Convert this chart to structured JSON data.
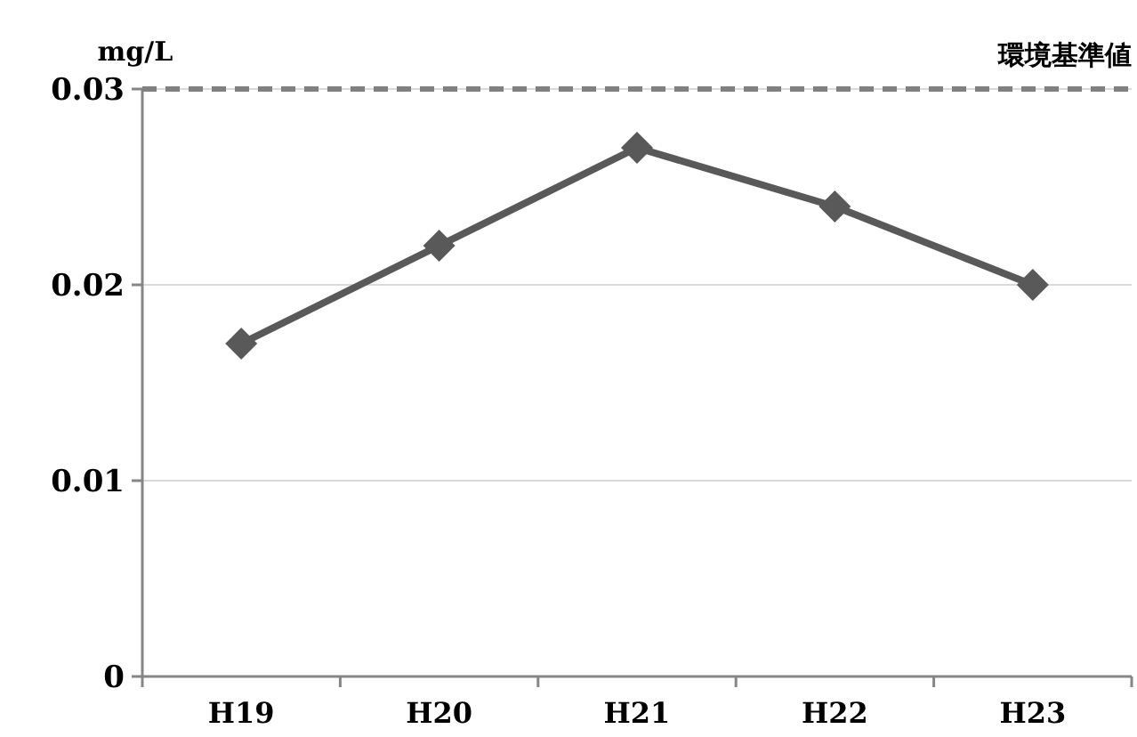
{
  "chart_data": {
    "type": "line",
    "ylabel": "mg/L",
    "categories": [
      "H19",
      "H20",
      "H21",
      "H22",
      "H23"
    ],
    "series": [
      {
        "color": "#595959",
        "values": [
          0.017,
          0.022,
          0.027,
          0.024,
          0.02
        ]
      }
    ],
    "ylim": [
      0,
      0.03
    ],
    "yticks": [
      0,
      0.01,
      0.02,
      0.03
    ],
    "grid": "y",
    "marker": "diamond",
    "line_style": "solid",
    "ref_lines": [
      {
        "axis": "y",
        "value": 0.03,
        "label": "環境基準値",
        "color": "#808080",
        "line_style": "dashed"
      }
    ]
  }
}
